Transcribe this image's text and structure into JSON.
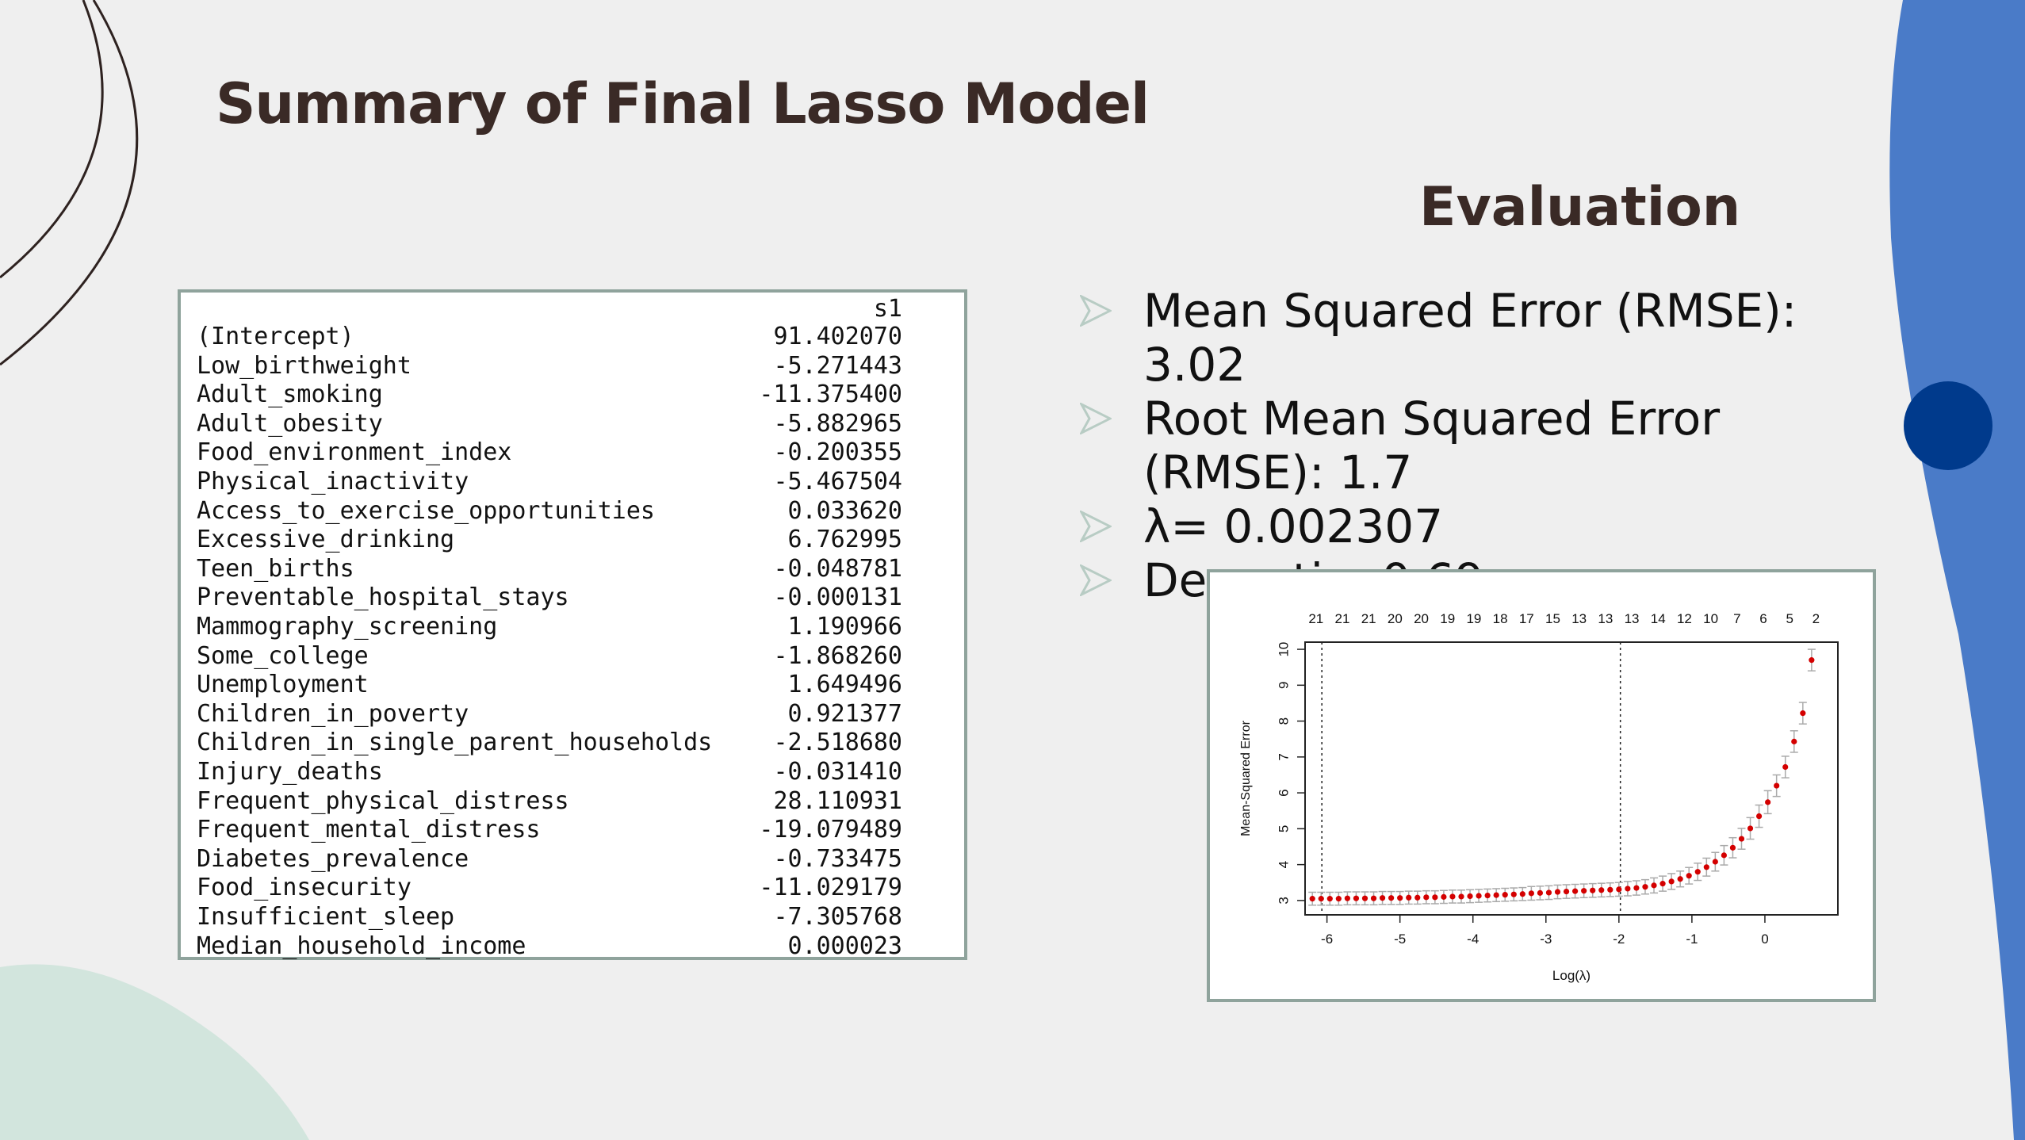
{
  "slide": {
    "title": "Summary of Final Lasso Model",
    "eval_title": "Evaluation",
    "bullets": [
      "Mean Squared Error (RMSE): 3.02",
      "Root Mean Squared Error (RMSE): 1.7",
      "λ= 0.002307",
      "Dev.ratio: 0.69"
    ],
    "colors": {
      "accent_blue": "#4a7bc8",
      "dark_blue": "#003a8c",
      "mint": "#d2e5dd",
      "arrow": "#b8ccc4"
    }
  },
  "coefficients": {
    "header": "s1",
    "rows": [
      {
        "name": "(Intercept)",
        "value": "91.402070"
      },
      {
        "name": "Low_birthweight",
        "value": "-5.271443"
      },
      {
        "name": "Adult_smoking",
        "value": "-11.375400"
      },
      {
        "name": "Adult_obesity",
        "value": "-5.882965"
      },
      {
        "name": "Food_environment_index",
        "value": "-0.200355"
      },
      {
        "name": "Physical_inactivity",
        "value": "-5.467504"
      },
      {
        "name": "Access_to_exercise_opportunities",
        "value": "0.033620"
      },
      {
        "name": "Excessive_drinking",
        "value": "6.762995"
      },
      {
        "name": "Teen_births",
        "value": "-0.048781"
      },
      {
        "name": "Preventable_hospital_stays",
        "value": "-0.000131"
      },
      {
        "name": "Mammography_screening",
        "value": "1.190966"
      },
      {
        "name": "Some_college",
        "value": "-1.868260"
      },
      {
        "name": "Unemployment",
        "value": "1.649496"
      },
      {
        "name": "Children_in_poverty",
        "value": "0.921377"
      },
      {
        "name": "Children_in_single_parent_households",
        "value": "-2.518680"
      },
      {
        "name": "Injury_deaths",
        "value": "-0.031410"
      },
      {
        "name": "Frequent_physical_distress",
        "value": "28.110931"
      },
      {
        "name": "Frequent_mental_distress",
        "value": "-19.079489"
      },
      {
        "name": "Diabetes_prevalence",
        "value": "-0.733475"
      },
      {
        "name": "Food_insecurity",
        "value": "-11.029179"
      },
      {
        "name": "Insufficient_sleep",
        "value": "-7.305768"
      },
      {
        "name": "Median_household_income",
        "value": "0.000023"
      }
    ]
  },
  "chart_data": {
    "type": "scatter",
    "xlabel": "Log(λ)",
    "ylabel": "Mean-Squared Error",
    "xlim": [
      -6.3,
      1.0
    ],
    "ylim": [
      2.6,
      10.2
    ],
    "xticks": [
      -6,
      -5,
      -4,
      -3,
      -2,
      -1,
      0
    ],
    "yticks": [
      3,
      4,
      5,
      6,
      7,
      8,
      9,
      10
    ],
    "top_axis_labels": [
      "21",
      "21",
      "21",
      "20",
      "20",
      "19",
      "19",
      "18",
      "17",
      "15",
      "13",
      "13",
      "13",
      "14",
      "12",
      "10",
      "7",
      "6",
      "5",
      "2"
    ],
    "vlines": [
      -6.07,
      -1.98
    ],
    "point_color": "#d40000",
    "errorbar_color": "#aaaaaa",
    "series": [
      {
        "x": [
          -6.2,
          -6.08,
          -5.96,
          -5.84,
          -5.72,
          -5.6,
          -5.48,
          -5.36,
          -5.24,
          -5.12,
          -5.0,
          -4.88,
          -4.76,
          -4.64,
          -4.52,
          -4.4,
          -4.28,
          -4.16,
          -4.04,
          -3.92,
          -3.8,
          -3.68,
          -3.56,
          -3.44,
          -3.32,
          -3.2,
          -3.08,
          -2.96,
          -2.84,
          -2.72,
          -2.6,
          -2.48,
          -2.36,
          -2.24,
          -2.12,
          -2.0,
          -1.88,
          -1.76,
          -1.64,
          -1.52,
          -1.4,
          -1.28,
          -1.16,
          -1.04,
          -0.92,
          -0.8,
          -0.68,
          -0.56,
          -0.44,
          -0.32,
          -0.2,
          -0.08,
          0.04,
          0.16,
          0.28,
          0.4,
          0.52,
          0.64
        ],
        "y": [
          3.05,
          3.05,
          3.05,
          3.05,
          3.06,
          3.06,
          3.06,
          3.06,
          3.07,
          3.07,
          3.07,
          3.08,
          3.08,
          3.09,
          3.09,
          3.1,
          3.11,
          3.11,
          3.12,
          3.13,
          3.14,
          3.15,
          3.16,
          3.17,
          3.18,
          3.2,
          3.21,
          3.22,
          3.24,
          3.25,
          3.26,
          3.27,
          3.28,
          3.29,
          3.3,
          3.31,
          3.33,
          3.35,
          3.38,
          3.42,
          3.47,
          3.53,
          3.6,
          3.69,
          3.8,
          3.93,
          4.08,
          4.26,
          4.47,
          4.72,
          5.01,
          5.35,
          5.74,
          6.2,
          6.72,
          7.43,
          8.22,
          9.7
        ],
        "err": [
          0.18,
          0.18,
          0.18,
          0.18,
          0.18,
          0.18,
          0.18,
          0.18,
          0.18,
          0.18,
          0.18,
          0.18,
          0.18,
          0.18,
          0.18,
          0.18,
          0.18,
          0.18,
          0.18,
          0.18,
          0.18,
          0.18,
          0.18,
          0.18,
          0.18,
          0.19,
          0.19,
          0.19,
          0.19,
          0.19,
          0.19,
          0.19,
          0.19,
          0.19,
          0.19,
          0.19,
          0.2,
          0.2,
          0.2,
          0.21,
          0.21,
          0.22,
          0.22,
          0.23,
          0.24,
          0.25,
          0.26,
          0.27,
          0.28,
          0.29,
          0.3,
          0.31,
          0.32,
          0.3,
          0.3,
          0.3,
          0.3,
          0.3
        ]
      }
    ]
  }
}
